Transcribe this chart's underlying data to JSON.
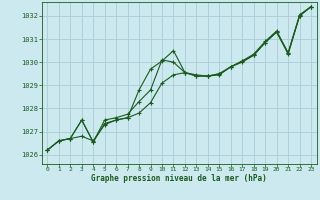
{
  "title": "Graphe pression niveau de la mer (hPa)",
  "bg_color": "#cce9f0",
  "grid_color": "#aaccd4",
  "line_color": "#1a5c1a",
  "xlim": [
    -0.5,
    23.5
  ],
  "ylim": [
    1025.6,
    1032.6
  ],
  "yticks": [
    1026,
    1027,
    1028,
    1029,
    1030,
    1031,
    1032
  ],
  "xticks": [
    0,
    1,
    2,
    3,
    4,
    5,
    6,
    7,
    8,
    9,
    10,
    11,
    12,
    13,
    14,
    15,
    16,
    17,
    18,
    19,
    20,
    21,
    22,
    23
  ],
  "series": [
    [
      1026.2,
      1026.6,
      1026.7,
      1026.8,
      1026.6,
      1027.3,
      1027.5,
      1027.6,
      1028.8,
      1029.7,
      1030.05,
      1030.5,
      1029.55,
      1029.45,
      1029.4,
      1029.45,
      1029.8,
      1030.05,
      1030.3,
      1030.85,
      1031.3,
      1030.35,
      1032.0,
      1032.4
    ],
    [
      1026.2,
      1026.6,
      1026.7,
      1027.5,
      1026.55,
      1027.5,
      1027.6,
      1027.75,
      1028.3,
      1028.8,
      1030.1,
      1030.0,
      1029.55,
      1029.4,
      1029.4,
      1029.5,
      1029.8,
      1030.05,
      1030.35,
      1030.9,
      1031.35,
      1030.4,
      1032.05,
      1032.4
    ],
    [
      1026.2,
      1026.6,
      1026.7,
      1027.5,
      1026.55,
      1027.35,
      1027.5,
      1027.6,
      1027.8,
      1028.25,
      1029.1,
      1029.45,
      1029.55,
      1029.4,
      1029.4,
      1029.5,
      1029.8,
      1030.0,
      1030.3,
      1030.85,
      1031.3,
      1030.4,
      1032.0,
      1032.4
    ]
  ]
}
